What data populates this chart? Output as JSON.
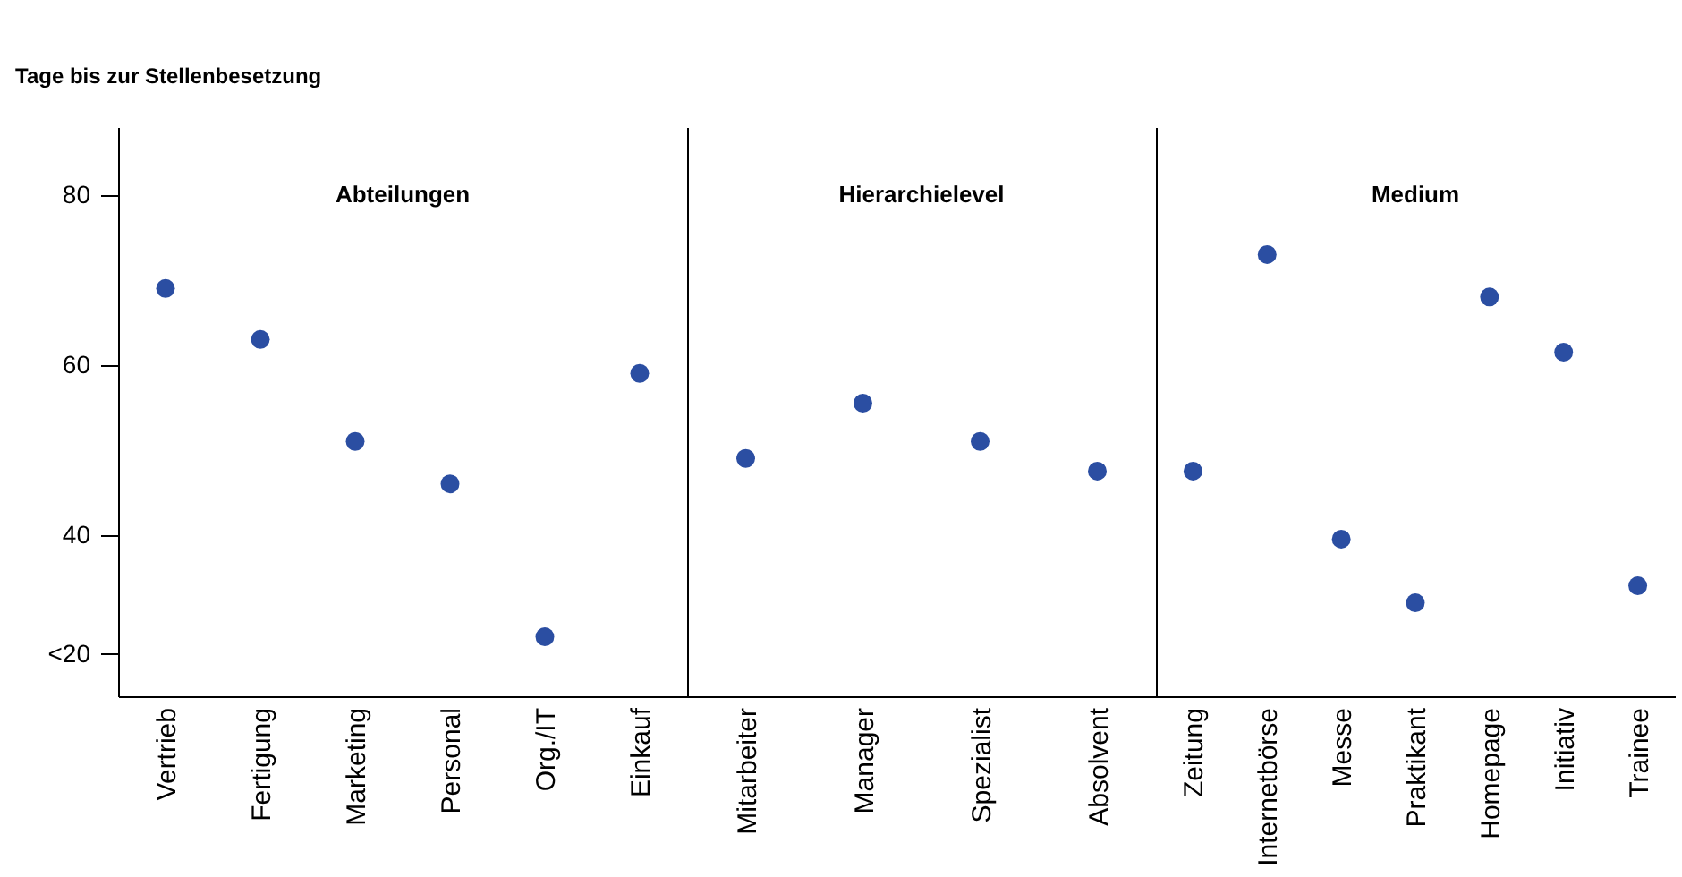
{
  "chart_data": [
    {
      "type": "scatter",
      "title": "Abteilungen",
      "ylabel": "Tage bis zur Stellenbesetzung",
      "categories": [
        "Vertrieb",
        "Fertigung",
        "Marketing",
        "Personal",
        "Org./IT",
        "Einkauf"
      ],
      "values": [
        69,
        63,
        51,
        46,
        28,
        59
      ],
      "color": "#2b4ea2",
      "ylim": [
        21,
        88
      ],
      "yticks": [
        {
          "value": 26,
          "label": "<20"
        },
        40,
        60,
        80
      ],
      "grid": false
    },
    {
      "type": "scatter",
      "title": "Hierarchielevel",
      "categories": [
        "Mitarbeiter",
        "Manager",
        "Spezialist",
        "Absolvent"
      ],
      "values": [
        49,
        55.5,
        51,
        47.5
      ],
      "color": "#2b4ea2",
      "ylim": [
        21,
        88
      ],
      "grid": false,
      "tick_labels": "x"
    },
    {
      "type": "scatter",
      "title": "Medium",
      "categories": [
        "Zeitung",
        "Internetbörse",
        "Messe",
        "Praktikant",
        "Homepage",
        "Initiativ",
        "Trainee"
      ],
      "values": [
        47.5,
        73,
        39.5,
        32,
        68,
        61.5,
        34
      ],
      "color": "#2b4ea2",
      "ylim": [
        21,
        88
      ],
      "grid": false,
      "tick_labels": "x"
    }
  ]
}
